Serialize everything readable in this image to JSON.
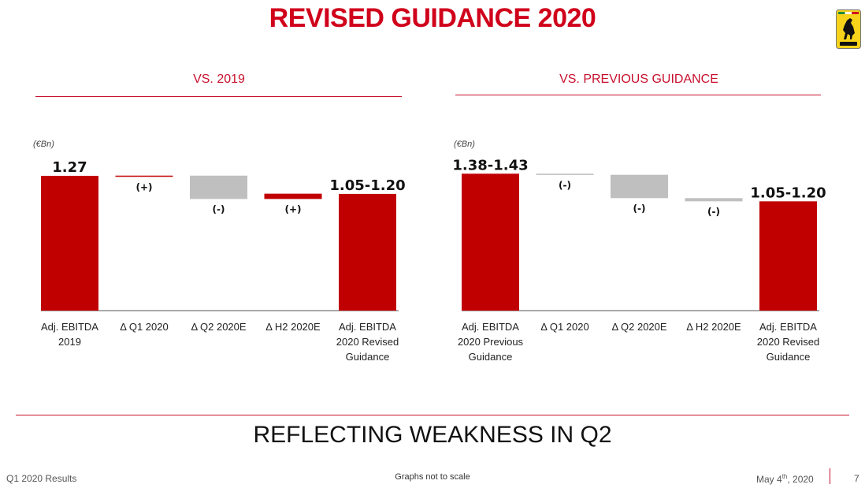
{
  "page": {
    "title": "REVISED GUIDANCE 2020",
    "tagline": "REFLECTING WEAKNESS IN Q2",
    "footer_left": "Q1 2020 Results",
    "footer_center": "Graphs not to scale",
    "footer_date_prefix": "May 4",
    "footer_date_sup": "th",
    "footer_date_suffix": ", 2020",
    "footer_page": "7",
    "logo_icon": "ferrari-prancing-horse-logo-icon"
  },
  "colors": {
    "accent": "#c8102e",
    "increase": "#c00000",
    "decrease": "#bfbfbf"
  },
  "chart_data": [
    {
      "type": "waterfall",
      "title": "VS. 2019",
      "unit_label": "(€Bn)",
      "categories": [
        "Adj. EBITDA 2019",
        "Δ Q1 2020",
        "Δ Q2 2020E",
        "Δ H2 2020E",
        "Adj. EBITDA 2020 Revised Guidance"
      ],
      "category_lines": [
        [
          "Adj. EBITDA",
          "2019"
        ],
        [
          "Δ Q1 2020"
        ],
        [
          "Δ Q2 2020E"
        ],
        [
          "Δ H2 2020E"
        ],
        [
          "Adj. EBITDA",
          "2020 Revised",
          "Guidance"
        ]
      ],
      "values": [
        1.27,
        0.002,
        -0.22,
        0.05,
        1.1
      ],
      "kinds": [
        "total",
        "increase",
        "decrease",
        "increase",
        "total"
      ],
      "data_labels": [
        "1.27",
        "(+)",
        "(-)",
        "(+)",
        "1.05-1.20"
      ],
      "ylim": [
        0,
        1.3
      ]
    },
    {
      "type": "waterfall",
      "title": "VS. PREVIOUS GUIDANCE",
      "unit_label": "(€Bn)",
      "categories": [
        "Adj. EBITDA 2020 Previous Guidance",
        "Δ Q1 2020",
        "Δ Q2 2020E",
        "Δ H2 2020E",
        "Adj. EBITDA 2020 Revised Guidance"
      ],
      "category_lines": [
        [
          "Adj. EBITDA",
          "2020 Previous",
          "Guidance"
        ],
        [
          "Δ Q1 2020"
        ],
        [
          "Δ Q2 2020E"
        ],
        [
          "Δ H2 2020E"
        ],
        [
          "Adj. EBITDA",
          "2020 Revised",
          "Guidance"
        ]
      ],
      "values": [
        1.29,
        -0.01,
        -0.22,
        -0.03,
        1.03
      ],
      "kinds": [
        "total",
        "decrease",
        "decrease",
        "decrease",
        "total"
      ],
      "data_labels": [
        "1.38-1.43",
        "(-)",
        "(-)",
        "(-)",
        "1.05-1.20"
      ],
      "ylim": [
        0,
        1.3
      ]
    }
  ]
}
